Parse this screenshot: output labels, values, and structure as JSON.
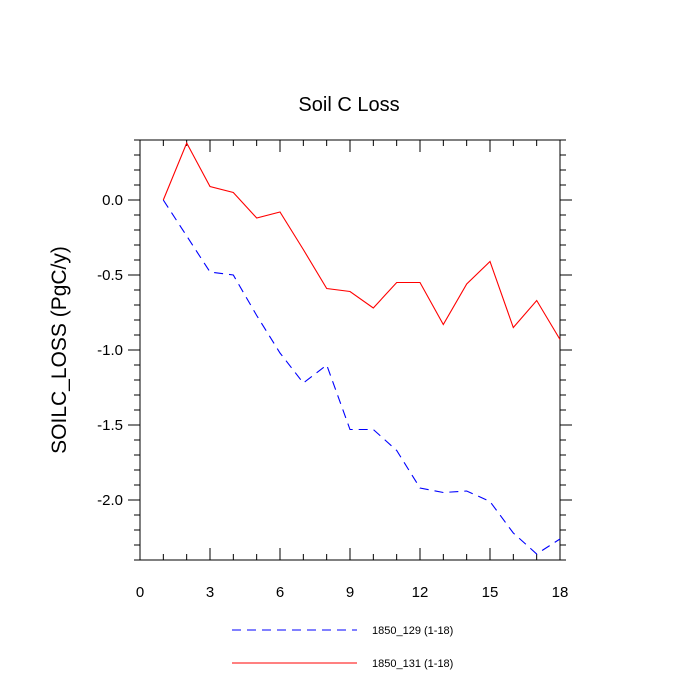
{
  "chart_data": {
    "type": "line",
    "title": "Soil C Loss",
    "xlabel": "",
    "ylabel": "SOILC_LOSS  (PgC/y)",
    "xlim": [
      0,
      18
    ],
    "ylim": [
      -2.4,
      0.4
    ],
    "x_ticks": [
      0,
      3,
      6,
      9,
      12,
      15,
      18
    ],
    "x_tick_labels": [
      "0",
      "3",
      "6",
      "9",
      "12",
      "15",
      "18"
    ],
    "y_ticks": [
      0.0,
      -0.5,
      -1.0,
      -1.5,
      -2.0
    ],
    "y_tick_labels": [
      "0.0",
      "-0.5",
      "-1.0",
      "-1.5",
      "-2.0"
    ],
    "x": [
      1,
      2,
      3,
      4,
      5,
      6,
      7,
      8,
      9,
      10,
      11,
      12,
      13,
      14,
      15,
      16,
      17,
      18
    ],
    "series": [
      {
        "name": "1850_129 (1-18)",
        "color": "#0000ff",
        "style": "dashed",
        "values": [
          0.0,
          -0.24,
          -0.48,
          -0.5,
          -0.77,
          -1.02,
          -1.22,
          -1.1,
          -1.53,
          -1.53,
          -1.67,
          -1.92,
          -1.95,
          -1.94,
          -2.01,
          -2.22,
          -2.36,
          -2.26
        ]
      },
      {
        "name": "1850_131 (1-18)",
        "color": "#ff0000",
        "style": "solid",
        "values": [
          0.0,
          0.38,
          0.09,
          0.05,
          -0.12,
          -0.08,
          -0.33,
          -0.59,
          -0.61,
          -0.72,
          -0.55,
          -0.55,
          -0.83,
          -0.56,
          -0.41,
          -0.85,
          -0.67,
          -0.93
        ]
      }
    ],
    "legend_position": "bottom"
  }
}
